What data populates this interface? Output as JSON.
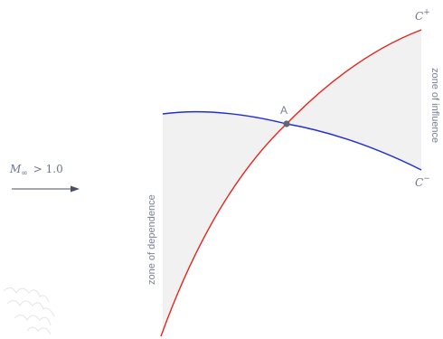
{
  "diagram": {
    "mach_label": {
      "symbol": "M",
      "subscript": "∞",
      "relation": "> 1.0"
    },
    "point_label": "A",
    "characteristic_plus": {
      "base": "C",
      "sup": "+"
    },
    "characteristic_minus": {
      "base": "C",
      "sup": "−"
    },
    "zone_dependence_label": "zone of dependence",
    "zone_influence_label": "zone of influence",
    "colors": {
      "c_plus": "#e8231b",
      "c_minus": "#1f2fd6",
      "zone_fill": "#f1f1f1",
      "label": "#7a7f98",
      "point": "#5f6478",
      "arrow": "#4a4f66"
    }
  }
}
